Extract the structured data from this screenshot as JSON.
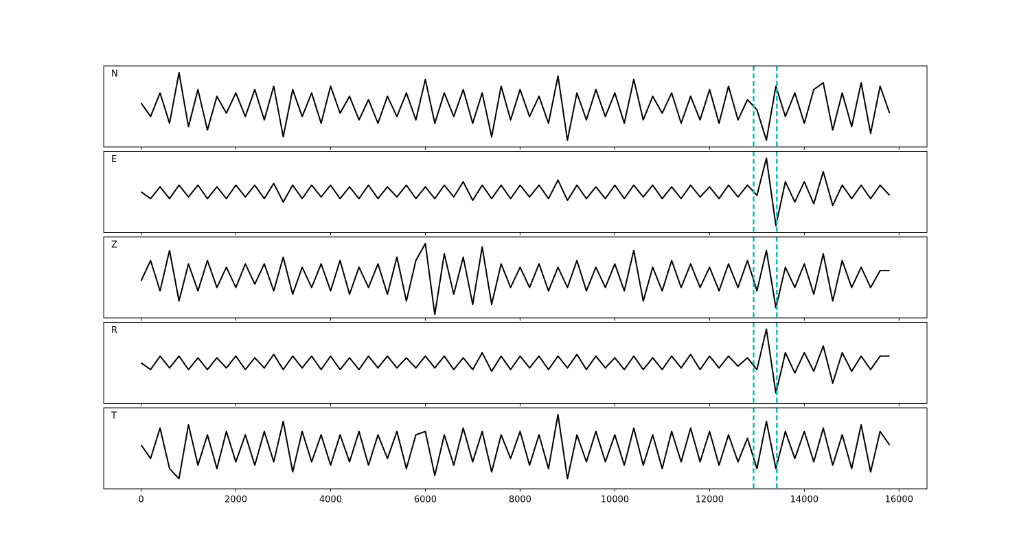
{
  "chart_data": {
    "type": "line",
    "x": [
      0,
      200,
      400,
      600,
      800,
      1000,
      1200,
      1400,
      1600,
      1800,
      2000,
      2200,
      2400,
      2600,
      2800,
      3000,
      3200,
      3400,
      3600,
      3800,
      4000,
      4200,
      4400,
      4600,
      4800,
      5000,
      5200,
      5400,
      5600,
      5800,
      6000,
      6200,
      6400,
      6600,
      6800,
      7000,
      7200,
      7400,
      7600,
      7800,
      8000,
      8200,
      8400,
      8600,
      8800,
      9000,
      9200,
      9400,
      9600,
      9800,
      10000,
      10200,
      10400,
      10600,
      10800,
      11000,
      11200,
      11400,
      11600,
      11800,
      12000,
      12200,
      12400,
      12600,
      12800,
      13000,
      13200,
      13400,
      13600,
      13800,
      14000,
      14200,
      14400,
      14600,
      14800,
      15000,
      15200,
      15400,
      15600,
      15800
    ],
    "series": [
      {
        "name": "N",
        "color": "#000000",
        "values": [
          0.1,
          -0.3,
          0.4,
          -0.5,
          1.0,
          -0.6,
          0.5,
          -0.7,
          0.3,
          -0.2,
          0.4,
          -0.3,
          0.5,
          -0.4,
          0.6,
          -0.9,
          0.5,
          -0.3,
          0.4,
          -0.5,
          0.6,
          -0.2,
          0.3,
          -0.4,
          0.2,
          -0.5,
          0.3,
          -0.3,
          0.4,
          -0.4,
          0.8,
          -0.5,
          0.4,
          -0.3,
          0.5,
          -0.5,
          0.4,
          -0.9,
          0.6,
          -0.4,
          0.5,
          -0.3,
          0.3,
          -0.5,
          0.9,
          -1.0,
          0.4,
          -0.4,
          0.5,
          -0.3,
          0.4,
          -0.5,
          0.8,
          -0.4,
          0.3,
          -0.2,
          0.4,
          -0.5,
          0.3,
          -0.4,
          0.5,
          -0.5,
          0.6,
          -0.4,
          0.2,
          -0.1,
          -1.0,
          0.6,
          -0.3,
          0.4,
          -0.5,
          0.5,
          0.7,
          -0.7,
          0.4,
          -0.6,
          0.7,
          -0.8,
          0.6,
          -0.2
        ]
      },
      {
        "name": "E",
        "color": "#000000",
        "values": [
          0.0,
          -0.2,
          0.15,
          -0.2,
          0.2,
          -0.15,
          0.2,
          -0.2,
          0.15,
          -0.2,
          0.2,
          -0.15,
          0.2,
          -0.2,
          0.25,
          -0.3,
          0.2,
          -0.2,
          0.2,
          -0.15,
          0.2,
          -0.2,
          0.15,
          -0.2,
          0.2,
          -0.2,
          0.15,
          -0.15,
          0.2,
          -0.2,
          0.15,
          -0.2,
          0.2,
          -0.15,
          0.3,
          -0.25,
          0.2,
          -0.2,
          0.2,
          -0.2,
          0.2,
          -0.15,
          0.2,
          -0.2,
          0.35,
          -0.25,
          0.2,
          -0.2,
          0.15,
          -0.2,
          0.2,
          -0.2,
          0.2,
          -0.15,
          0.2,
          -0.2,
          0.15,
          -0.2,
          0.2,
          -0.15,
          0.15,
          -0.2,
          0.2,
          -0.15,
          0.2,
          -0.1,
          1.0,
          -1.0,
          0.3,
          -0.3,
          0.3,
          -0.35,
          0.6,
          -0.4,
          0.2,
          -0.2,
          0.2,
          -0.2,
          0.2,
          -0.1
        ]
      },
      {
        "name": "Z",
        "color": "#000000",
        "values": [
          -0.1,
          0.5,
          -0.4,
          0.8,
          -0.7,
          0.4,
          -0.4,
          0.5,
          -0.3,
          0.3,
          -0.3,
          0.4,
          -0.2,
          0.4,
          -0.4,
          0.6,
          -0.5,
          0.3,
          -0.3,
          0.4,
          -0.4,
          0.5,
          -0.5,
          0.3,
          -0.3,
          0.4,
          -0.5,
          0.6,
          -0.7,
          0.5,
          1.0,
          -1.1,
          0.7,
          -0.5,
          0.6,
          -0.8,
          0.9,
          -0.8,
          0.4,
          -0.3,
          0.3,
          -0.3,
          0.4,
          -0.4,
          0.3,
          -0.3,
          0.5,
          -0.4,
          0.3,
          -0.3,
          0.4,
          -0.4,
          0.8,
          -0.7,
          0.3,
          -0.4,
          0.5,
          -0.3,
          0.4,
          -0.3,
          0.3,
          -0.4,
          0.4,
          -0.3,
          0.5,
          -0.4,
          0.8,
          -0.9,
          0.3,
          -0.3,
          0.4,
          -0.5,
          0.7,
          -0.7,
          0.5,
          -0.3,
          0.3,
          -0.3,
          0.2,
          0.2
        ]
      },
      {
        "name": "R",
        "color": "#000000",
        "values": [
          0.0,
          -0.2,
          0.2,
          -0.15,
          0.2,
          -0.2,
          0.15,
          -0.2,
          0.15,
          -0.15,
          0.2,
          -0.2,
          0.15,
          -0.15,
          0.25,
          -0.2,
          0.2,
          -0.15,
          0.2,
          -0.2,
          0.2,
          -0.2,
          0.15,
          -0.2,
          0.2,
          -0.15,
          0.2,
          -0.15,
          0.15,
          -0.15,
          0.2,
          -0.15,
          0.2,
          -0.2,
          0.15,
          -0.2,
          0.3,
          -0.25,
          0.2,
          -0.2,
          0.2,
          -0.15,
          0.2,
          -0.2,
          0.2,
          -0.15,
          0.25,
          -0.2,
          0.2,
          -0.15,
          0.15,
          -0.2,
          0.2,
          -0.2,
          0.15,
          -0.2,
          0.2,
          -0.15,
          0.25,
          -0.2,
          0.2,
          -0.15,
          0.2,
          -0.1,
          0.15,
          -0.2,
          1.0,
          -0.9,
          0.3,
          -0.3,
          0.3,
          -0.25,
          0.5,
          -0.6,
          0.3,
          -0.25,
          0.2,
          -0.2,
          0.2,
          0.2
        ]
      },
      {
        "name": "T",
        "color": "#000000",
        "values": [
          0.1,
          -0.3,
          0.6,
          -0.6,
          -0.9,
          0.7,
          -0.5,
          0.4,
          -0.6,
          0.5,
          -0.4,
          0.4,
          -0.5,
          0.5,
          -0.4,
          0.8,
          -0.7,
          0.5,
          -0.4,
          0.4,
          -0.5,
          0.4,
          -0.4,
          0.5,
          -0.5,
          0.4,
          -0.3,
          0.5,
          -0.6,
          0.4,
          0.5,
          -0.8,
          0.4,
          -0.5,
          0.6,
          -0.4,
          0.5,
          -0.7,
          0.4,
          -0.3,
          0.5,
          -0.5,
          0.4,
          -0.6,
          1.0,
          -0.9,
          0.4,
          -0.4,
          0.5,
          -0.4,
          0.4,
          -0.5,
          0.6,
          -0.5,
          0.4,
          -0.6,
          0.5,
          -0.4,
          0.6,
          -0.4,
          0.5,
          -0.5,
          0.4,
          -0.4,
          0.3,
          -0.6,
          0.8,
          -0.6,
          0.5,
          -0.3,
          0.5,
          -0.4,
          0.6,
          -0.5,
          0.4,
          -0.6,
          0.7,
          -0.7,
          0.5,
          0.1
        ]
      }
    ],
    "xlim": [
      -790,
      16590
    ],
    "xticks": [
      0,
      2000,
      4000,
      6000,
      8000,
      10000,
      12000,
      14000,
      16000
    ],
    "ylim": [
      -1.2,
      1.2
    ],
    "vlines": {
      "color": "#00bfbf",
      "values": [
        12930,
        13420
      ]
    }
  }
}
